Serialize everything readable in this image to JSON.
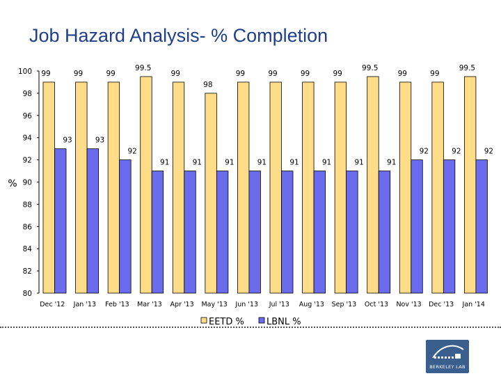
{
  "title": "Job Hazard Analysis- % Completion",
  "logo": {
    "text": "BERKELEY LAB"
  },
  "colors": {
    "eetd": "#ffdd88",
    "lbnl": "#6b6bee",
    "stroke": "#000000",
    "title": "#1f3f8a"
  },
  "chart_data": {
    "type": "bar",
    "title": "Job Hazard Analysis- % Completion",
    "xlabel": "",
    "ylabel": "%",
    "ylim": [
      80,
      100
    ],
    "yticks": [
      80,
      82,
      84,
      86,
      88,
      90,
      92,
      94,
      96,
      98,
      100
    ],
    "grid": false,
    "legend_position": "bottom",
    "categories": [
      "Dec '12",
      "Jan '13",
      "Feb '13",
      "Mar '13",
      "Apr '13",
      "May '13",
      "Jun '13",
      "Jul '13",
      "Aug '13",
      "Sep '13",
      "Oct '13",
      "Nov '13",
      "Dec '13",
      "Jan '14"
    ],
    "series": [
      {
        "name": "EETD %",
        "values": [
          99,
          99,
          99,
          99.5,
          99,
          98,
          99,
          99,
          99,
          99,
          99.5,
          99,
          99,
          99.5
        ],
        "labels": [
          "99",
          "99",
          "99",
          "99.5",
          "99",
          "98",
          "99",
          "99",
          "99",
          "99",
          "99.5",
          "99",
          "99",
          "99.5"
        ]
      },
      {
        "name": "LBNL %",
        "values": [
          93,
          93,
          92,
          91,
          91,
          91,
          91,
          91,
          91,
          91,
          91,
          92,
          92,
          92
        ],
        "labels": [
          "93",
          "93",
          "92",
          "91",
          "91",
          "91",
          "91",
          "91",
          "91",
          "91",
          "91",
          "92",
          "92",
          "92"
        ]
      }
    ]
  }
}
